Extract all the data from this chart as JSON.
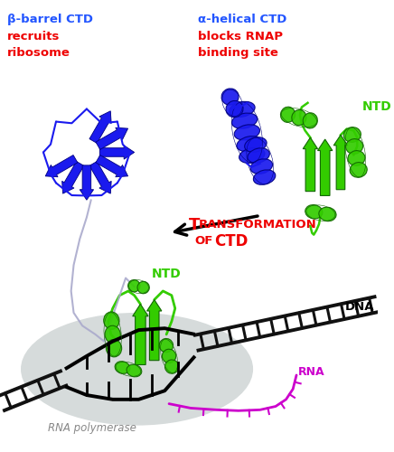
{
  "bg_color": "#ffffff",
  "label_beta_CTD": "β-barrel CTD",
  "label_recruits": "recruits",
  "label_ribosome": "ribosome",
  "label_alpha_CTD": "α-helical CTD",
  "label_blocks": "blocks RNAP",
  "label_binding": "binding site",
  "label_NTD_right": "NTD",
  "label_NTD_left": "NTD",
  "label_DNA": "DNA",
  "label_RNA": "RNA",
  "label_RNAP": "RNA polymerase",
  "transform_T": "T",
  "transform_rest": "RANSFORMATION",
  "transform_of": "OF",
  "transform_CTD": "CTD",
  "color_blue": "#1a1aee",
  "color_blue_dark": "#000080",
  "color_blue_label": "#2255ff",
  "color_red": "#ee0000",
  "color_green": "#33cc00",
  "color_green_dark": "#116600",
  "color_purple": "#cc00cc",
  "color_gray_oval": "#c0c8c8",
  "color_black": "#000000",
  "color_loop_gray": "#aaaacc",
  "color_rnap_text": "#888888"
}
